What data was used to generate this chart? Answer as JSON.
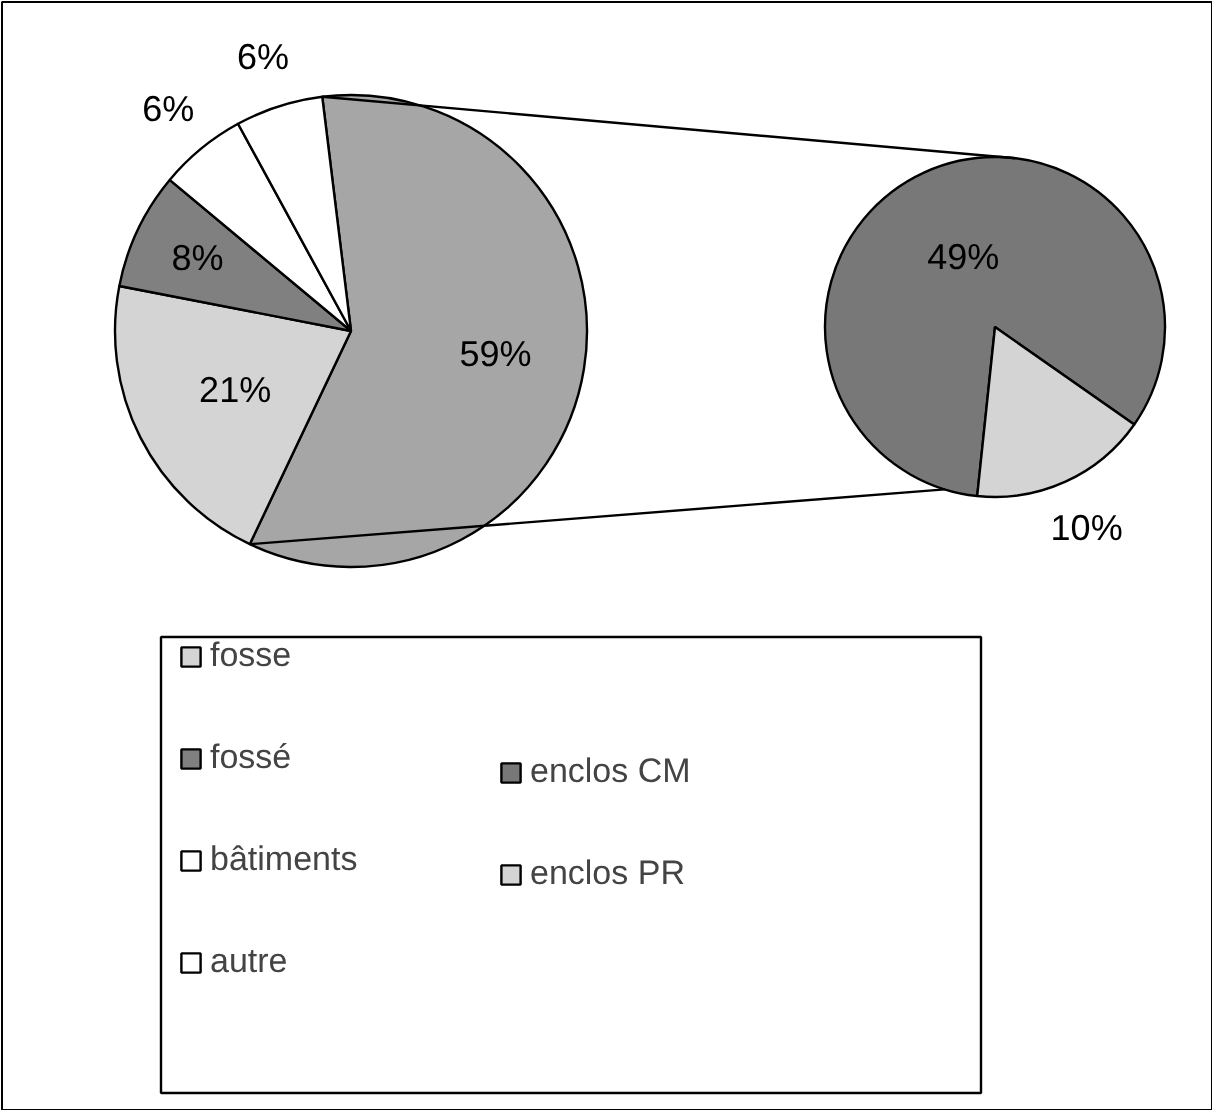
{
  "chart_data": [
    {
      "type": "pie",
      "categories": [
        null,
        "fosse",
        "fossé",
        "bâtiments",
        "autre"
      ],
      "values": [
        59,
        21,
        8,
        6,
        6
      ],
      "colors": [
        "#a6a6a6",
        "#d4d4d4",
        "#808080",
        "#ffffff",
        "#ffffff"
      ],
      "value_labels": [
        "59%",
        "21%",
        "8%",
        "6%",
        "6%"
      ],
      "legend": "bottom"
    },
    {
      "type": "pie",
      "categories": [
        "enclos CM",
        "enclos PR"
      ],
      "values": [
        49,
        10
      ],
      "colors": [
        "#787878",
        "#d4d4d4"
      ],
      "value_labels": [
        "49%",
        "10%"
      ],
      "legend": "bottom"
    }
  ]
}
